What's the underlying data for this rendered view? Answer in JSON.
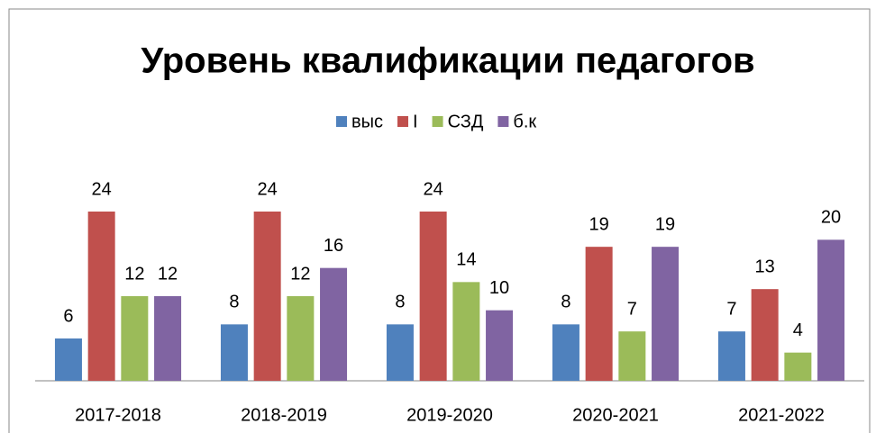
{
  "chart_data": {
    "type": "bar",
    "title": "Уровень квалификации педагогов",
    "categories": [
      "2017-2018",
      "2018-2019",
      "2019-2020",
      "2020-2021",
      "2021-2022"
    ],
    "series": [
      {
        "name": "выс",
        "color": "#4f81bd",
        "values": [
          6,
          8,
          8,
          8,
          7
        ]
      },
      {
        "name": "I",
        "color": "#c0504d",
        "values": [
          24,
          24,
          24,
          19,
          13
        ]
      },
      {
        "name": "СЗД",
        "color": "#9bbb59",
        "values": [
          12,
          12,
          14,
          7,
          4
        ]
      },
      {
        "name": "б.к",
        "color": "#8064a2",
        "values": [
          12,
          16,
          10,
          19,
          20
        ]
      }
    ],
    "ylim": [
      0,
      30
    ],
    "legend": "top"
  }
}
